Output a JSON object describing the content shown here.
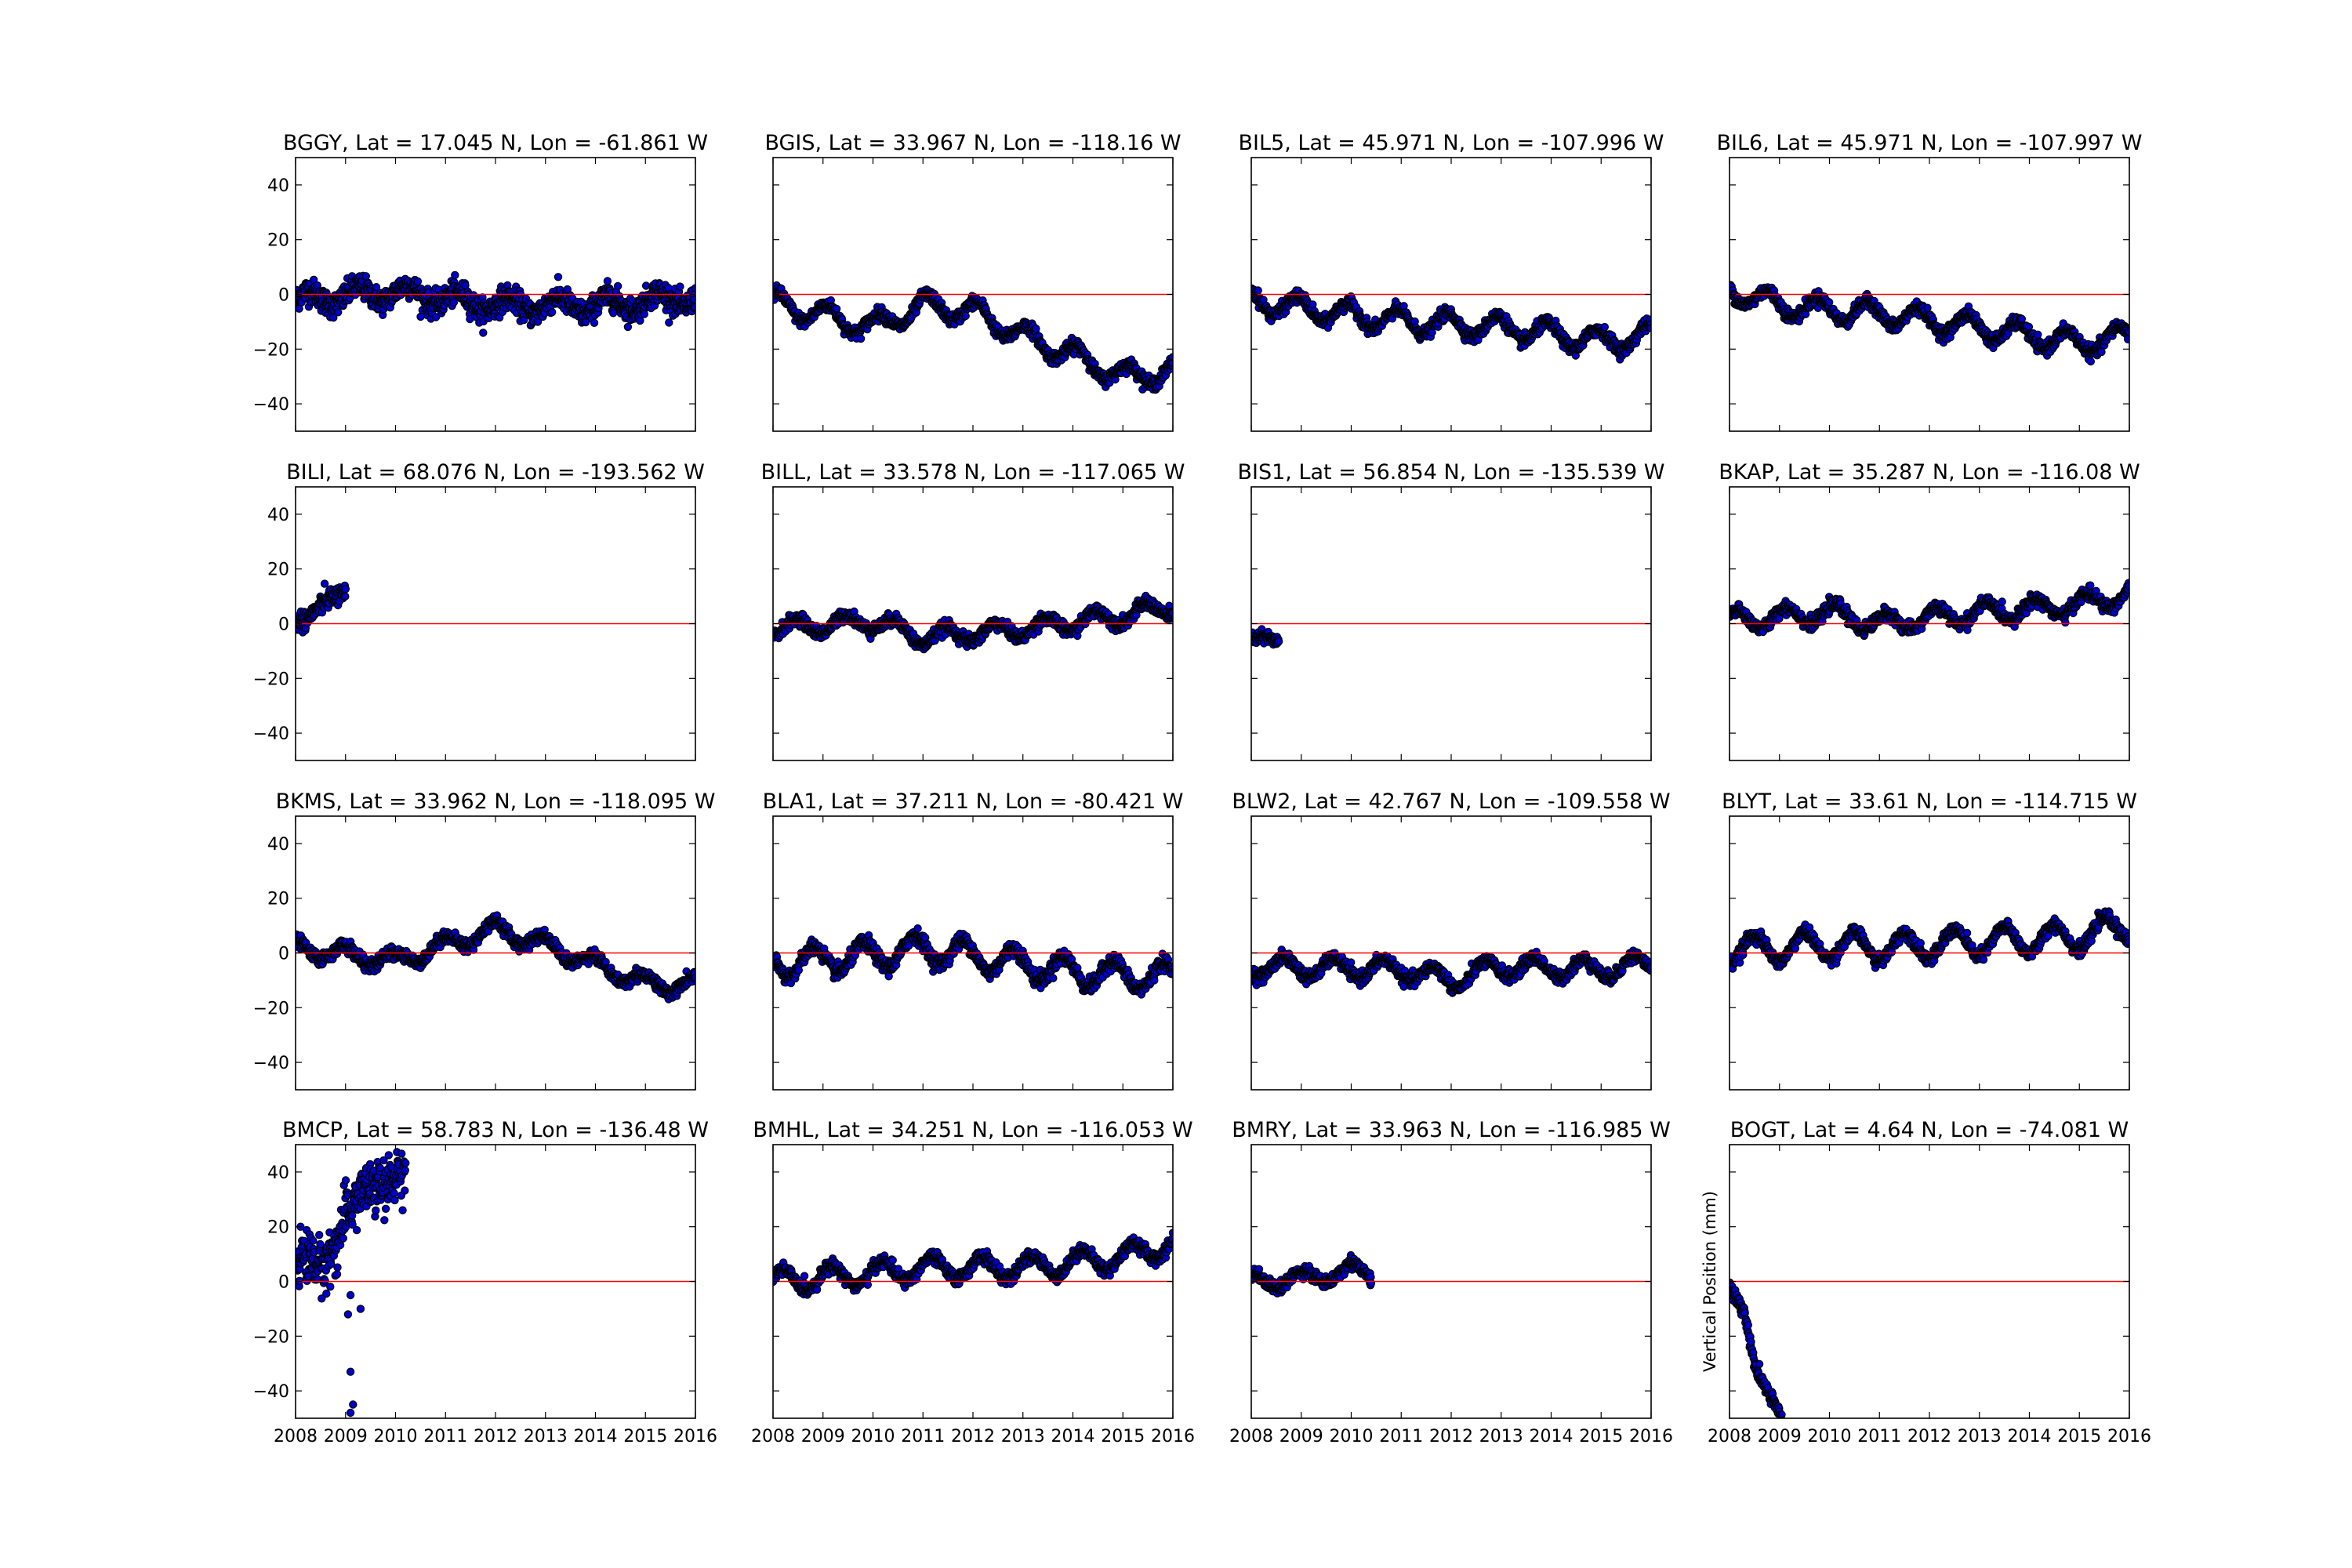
{
  "figure": {
    "ylabel": "Vertical Position (mm)"
  },
  "chart_data": [
    {
      "type": "scatter",
      "title": "BGGY, Lat = 17.045 N, Lon = -61.861 W",
      "xlim": [
        2008,
        2016
      ],
      "ylim": [
        -50,
        50
      ],
      "xticks": [
        "2008",
        "2009",
        "2010",
        "2011",
        "2012",
        "2013",
        "2014",
        "2015",
        "2016"
      ],
      "yticks": [
        "40",
        "20",
        "0",
        "−20",
        "−40"
      ],
      "reference_line": 0,
      "reference_color": "#ff0000",
      "marker_color": "#0000cc",
      "x_start": 2008.0,
      "x_end": 2016.0,
      "trend": [
        [
          2008,
          -2
        ],
        [
          2010,
          1
        ],
        [
          2012,
          -4
        ],
        [
          2014,
          -4
        ],
        [
          2016,
          -1
        ]
      ],
      "seasonal_amp": 3,
      "noise": 5,
      "show_xticks": false,
      "show_yticks": true
    },
    {
      "type": "scatter",
      "title": "BGIS, Lat = 33.967 N, Lon = -118.16 W",
      "xlim": [
        2008,
        2016
      ],
      "ylim": [
        -50,
        50
      ],
      "xticks": [
        "2008",
        "2009",
        "2010",
        "2011",
        "2012",
        "2013",
        "2014",
        "2015",
        "2016"
      ],
      "yticks": [
        "40",
        "20",
        "0",
        "−20",
        "−40"
      ],
      "reference_line": 0,
      "reference_color": "#ff0000",
      "marker_color": "#0000cc",
      "x_start": 2008.0,
      "x_end": 2016.0,
      "trend": [
        [
          2008,
          -3
        ],
        [
          2010,
          -12
        ],
        [
          2011,
          -4
        ],
        [
          2012,
          -6
        ],
        [
          2013,
          -15
        ],
        [
          2014,
          -22
        ],
        [
          2015,
          -30
        ],
        [
          2016,
          -28
        ]
      ],
      "seasonal_amp": 4,
      "noise": 2.5,
      "show_xticks": false,
      "show_yticks": false
    },
    {
      "type": "scatter",
      "title": "BIL5, Lat = 45.971 N, Lon = -107.996 W",
      "xlim": [
        2008,
        2016
      ],
      "ylim": [
        -50,
        50
      ],
      "xticks": [
        "2008",
        "2009",
        "2010",
        "2011",
        "2012",
        "2013",
        "2014",
        "2015",
        "2016"
      ],
      "yticks": [
        "40",
        "20",
        "0",
        "−20",
        "−40"
      ],
      "reference_line": 0,
      "reference_color": "#ff0000",
      "marker_color": "#0000cc",
      "x_start": 2008.0,
      "x_end": 2016.0,
      "trend": [
        [
          2008,
          -2
        ],
        [
          2009,
          -5
        ],
        [
          2011,
          -10
        ],
        [
          2013,
          -12
        ],
        [
          2015,
          -17
        ],
        [
          2016,
          -15
        ]
      ],
      "seasonal_amp": 4,
      "noise": 2.5,
      "show_xticks": false,
      "show_yticks": false
    },
    {
      "type": "scatter",
      "title": "BIL6, Lat = 45.971 N, Lon = -107.997 W",
      "xlim": [
        2008,
        2016
      ],
      "ylim": [
        -50,
        50
      ],
      "xticks": [
        "2008",
        "2009",
        "2010",
        "2011",
        "2012",
        "2013",
        "2014",
        "2015",
        "2016"
      ],
      "yticks": [
        "40",
        "20",
        "0",
        "−20",
        "−40"
      ],
      "reference_line": 0,
      "reference_color": "#ff0000",
      "marker_color": "#0000cc",
      "x_start": 2008.0,
      "x_end": 2016.0,
      "trend": [
        [
          2008,
          2
        ],
        [
          2009,
          -4
        ],
        [
          2011,
          -7
        ],
        [
          2013,
          -12
        ],
        [
          2015,
          -18
        ],
        [
          2016,
          -15
        ]
      ],
      "seasonal_amp": 4,
      "noise": 2.5,
      "show_xticks": false,
      "show_yticks": false
    },
    {
      "type": "scatter",
      "title": "BILI, Lat = 68.076 N, Lon = -193.562 W",
      "xlim": [
        2008,
        2016
      ],
      "ylim": [
        -50,
        50
      ],
      "xticks": [
        "2008",
        "2009",
        "2010",
        "2011",
        "2012",
        "2013",
        "2014",
        "2015",
        "2016"
      ],
      "yticks": [
        "40",
        "20",
        "0",
        "−20",
        "−40"
      ],
      "reference_line": 0,
      "reference_color": "#ff0000",
      "marker_color": "#0000cc",
      "x_start": 2008.0,
      "x_end": 2009.0,
      "trend": [
        [
          2008,
          2
        ],
        [
          2008.5,
          5
        ],
        [
          2009,
          12
        ]
      ],
      "seasonal_amp": 2,
      "noise": 4,
      "show_xticks": false,
      "show_yticks": true
    },
    {
      "type": "scatter",
      "title": "BILL, Lat = 33.578 N, Lon = -117.065 W",
      "xlim": [
        2008,
        2016
      ],
      "ylim": [
        -50,
        50
      ],
      "xticks": [
        "2008",
        "2009",
        "2010",
        "2011",
        "2012",
        "2013",
        "2014",
        "2015",
        "2016"
      ],
      "yticks": [
        "40",
        "20",
        "0",
        "−20",
        "−40"
      ],
      "reference_line": 0,
      "reference_color": "#ff0000",
      "marker_color": "#0000cc",
      "x_start": 2008.0,
      "x_end": 2016.0,
      "trend": [
        [
          2008,
          -2
        ],
        [
          2010,
          1
        ],
        [
          2011,
          -5
        ],
        [
          2013,
          -2
        ],
        [
          2015,
          3
        ],
        [
          2016,
          6
        ]
      ],
      "seasonal_amp": 3,
      "noise": 2.5,
      "show_xticks": false,
      "show_yticks": false
    },
    {
      "type": "scatter",
      "title": "BIS1, Lat = 56.854 N, Lon = -135.539 W",
      "xlim": [
        2008,
        2016
      ],
      "ylim": [
        -50,
        50
      ],
      "xticks": [
        "2008",
        "2009",
        "2010",
        "2011",
        "2012",
        "2013",
        "2014",
        "2015",
        "2016"
      ],
      "yticks": [
        "40",
        "20",
        "0",
        "−20",
        "−40"
      ],
      "reference_line": 0,
      "reference_color": "#ff0000",
      "marker_color": "#0000cc",
      "x_start": 2008.0,
      "x_end": 2008.55,
      "trend": [
        [
          2008,
          -5
        ],
        [
          2008.55,
          -7
        ]
      ],
      "seasonal_amp": 1,
      "noise": 2.5,
      "show_xticks": false,
      "show_yticks": false
    },
    {
      "type": "scatter",
      "title": "BKAP, Lat = 35.287 N, Lon = -116.08 W",
      "xlim": [
        2008,
        2016
      ],
      "ylim": [
        -50,
        50
      ],
      "xticks": [
        "2008",
        "2009",
        "2010",
        "2011",
        "2012",
        "2013",
        "2014",
        "2015",
        "2016"
      ],
      "yticks": [
        "40",
        "20",
        "0",
        "−20",
        "−40"
      ],
      "reference_line": 0,
      "reference_color": "#ff0000",
      "marker_color": "#0000cc",
      "x_start": 2008.0,
      "x_end": 2016.0,
      "trend": [
        [
          2008,
          1
        ],
        [
          2010,
          4
        ],
        [
          2011,
          0
        ],
        [
          2013,
          4
        ],
        [
          2015,
          7
        ],
        [
          2016,
          11
        ]
      ],
      "seasonal_amp": 3.5,
      "noise": 2.5,
      "show_xticks": false,
      "show_yticks": false
    },
    {
      "type": "scatter",
      "title": "BKMS, Lat = 33.962 N, Lon = -118.095 W",
      "xlim": [
        2008,
        2016
      ],
      "ylim": [
        -50,
        50
      ],
      "xticks": [
        "2008",
        "2009",
        "2010",
        "2011",
        "2012",
        "2013",
        "2014",
        "2015",
        "2016"
      ],
      "yticks": [
        "40",
        "20",
        "0",
        "−20",
        "−40"
      ],
      "reference_line": 0,
      "reference_color": "#ff0000",
      "marker_color": "#0000cc",
      "x_start": 2008.0,
      "x_end": 2016.0,
      "trend": [
        [
          2008,
          2
        ],
        [
          2010,
          -3
        ],
        [
          2011,
          3
        ],
        [
          2012,
          9
        ],
        [
          2013,
          3
        ],
        [
          2014,
          -4
        ],
        [
          2015,
          -11
        ],
        [
          2016,
          -12
        ]
      ],
      "seasonal_amp": 3,
      "noise": 2.5,
      "show_xticks": false,
      "show_yticks": true
    },
    {
      "type": "scatter",
      "title": "BLA1, Lat = 37.211 N, Lon = -80.421 W",
      "xlim": [
        2008,
        2016
      ],
      "ylim": [
        -50,
        50
      ],
      "xticks": [
        "2008",
        "2009",
        "2010",
        "2011",
        "2012",
        "2013",
        "2014",
        "2015",
        "2016"
      ],
      "yticks": [
        "40",
        "20",
        "0",
        "−20",
        "−40"
      ],
      "reference_line": 0,
      "reference_color": "#ff0000",
      "marker_color": "#0000cc",
      "x_start": 2008.0,
      "x_end": 2016.0,
      "trend": [
        [
          2008,
          -4
        ],
        [
          2010,
          -1
        ],
        [
          2011,
          2
        ],
        [
          2013,
          -4
        ],
        [
          2014,
          -7
        ],
        [
          2016,
          -9
        ]
      ],
      "seasonal_amp": 5,
      "noise": 3,
      "show_xticks": false,
      "show_yticks": false
    },
    {
      "type": "scatter",
      "title": "BLW2, Lat = 42.767 N, Lon = -109.558 W",
      "xlim": [
        2008,
        2016
      ],
      "ylim": [
        -50,
        50
      ],
      "xticks": [
        "2008",
        "2009",
        "2010",
        "2011",
        "2012",
        "2013",
        "2014",
        "2015",
        "2016"
      ],
      "yticks": [
        "40",
        "20",
        "0",
        "−20",
        "−40"
      ],
      "reference_line": 0,
      "reference_color": "#ff0000",
      "marker_color": "#0000cc",
      "x_start": 2008.0,
      "x_end": 2016.0,
      "trend": [
        [
          2008,
          -5
        ],
        [
          2011,
          -6
        ],
        [
          2012,
          -10
        ],
        [
          2013,
          -5
        ],
        [
          2015,
          -6
        ],
        [
          2016,
          -4
        ]
      ],
      "seasonal_amp": 3.5,
      "noise": 2.5,
      "show_xticks": false,
      "show_yticks": false
    },
    {
      "type": "scatter",
      "title": "BLYT, Lat = 33.61 N, Lon = -114.715 W",
      "xlim": [
        2008,
        2016
      ],
      "ylim": [
        -50,
        50
      ],
      "xticks": [
        "2008",
        "2009",
        "2010",
        "2011",
        "2012",
        "2013",
        "2014",
        "2015",
        "2016"
      ],
      "yticks": [
        "40",
        "20",
        "0",
        "−20",
        "−40"
      ],
      "reference_line": 0,
      "reference_color": "#ff0000",
      "marker_color": "#0000cc",
      "x_start": 2008.0,
      "x_end": 2016.0,
      "trend": [
        [
          2008,
          1
        ],
        [
          2010,
          3
        ],
        [
          2011,
          2
        ],
        [
          2013,
          4
        ],
        [
          2015,
          6
        ],
        [
          2016,
          10
        ]
      ],
      "seasonal_amp": 5,
      "noise": 2.5,
      "show_xticks": false,
      "show_yticks": false
    },
    {
      "type": "scatter",
      "title": "BMCP, Lat = 58.783 N, Lon = -136.48 W",
      "xlim": [
        2008,
        2016
      ],
      "ylim": [
        -50,
        50
      ],
      "xticks": [
        "2008",
        "2009",
        "2010",
        "2011",
        "2012",
        "2013",
        "2014",
        "2015",
        "2016"
      ],
      "yticks": [
        "40",
        "20",
        "0",
        "−20",
        "−40"
      ],
      "reference_line": 0,
      "reference_color": "#ff0000",
      "marker_color": "#0000cc",
      "x_start": 2008.0,
      "x_end": 2010.2,
      "trend": [
        [
          2008,
          10
        ],
        [
          2008.5,
          3
        ],
        [
          2009,
          25
        ],
        [
          2010,
          40
        ]
      ],
      "seasonal_amp": 3,
      "noise": 11,
      "outliers": [
        [
          2009.1,
          -48
        ],
        [
          2009.15,
          -45
        ],
        [
          2009.1,
          -33
        ],
        [
          2009.05,
          -12
        ],
        [
          2009.3,
          -10
        ],
        [
          2009.1,
          -5
        ]
      ],
      "show_xticks": true,
      "show_yticks": true
    },
    {
      "type": "scatter",
      "title": "BMHL, Lat = 34.251 N, Lon = -116.053 W",
      "xlim": [
        2008,
        2016
      ],
      "ylim": [
        -50,
        50
      ],
      "xticks": [
        "2008",
        "2009",
        "2010",
        "2011",
        "2012",
        "2013",
        "2014",
        "2015",
        "2016"
      ],
      "yticks": [
        "40",
        "20",
        "0",
        "−20",
        "−40"
      ],
      "reference_line": 0,
      "reference_color": "#ff0000",
      "marker_color": "#0000cc",
      "x_start": 2008.0,
      "x_end": 2016.0,
      "trend": [
        [
          2008,
          0
        ],
        [
          2010,
          3
        ],
        [
          2011,
          5
        ],
        [
          2013,
          5
        ],
        [
          2015,
          9
        ],
        [
          2016,
          14
        ]
      ],
      "seasonal_amp": 4,
      "noise": 2.5,
      "show_xticks": true,
      "show_yticks": false
    },
    {
      "type": "scatter",
      "title": "BMRY, Lat = 33.963 N, Lon = -116.985 W",
      "xlim": [
        2008,
        2016
      ],
      "ylim": [
        -50,
        50
      ],
      "xticks": [
        "2008",
        "2009",
        "2010",
        "2011",
        "2012",
        "2013",
        "2014",
        "2015",
        "2016"
      ],
      "yticks": [
        "40",
        "20",
        "0",
        "−20",
        "−40"
      ],
      "reference_line": 0,
      "reference_color": "#ff0000",
      "marker_color": "#0000cc",
      "x_start": 2008.0,
      "x_end": 2010.4,
      "trend": [
        [
          2008,
          0
        ],
        [
          2009,
          1
        ],
        [
          2010,
          4
        ],
        [
          2010.4,
          3
        ]
      ],
      "seasonal_amp": 3,
      "noise": 2.5,
      "show_xticks": true,
      "show_yticks": false
    },
    {
      "type": "scatter",
      "title": "BOGT, Lat = 4.64 N, Lon = -74.081 W",
      "xlim": [
        2008,
        2016
      ],
      "ylim": [
        -50,
        50
      ],
      "xticks": [
        "2008",
        "2009",
        "2010",
        "2011",
        "2012",
        "2013",
        "2014",
        "2015",
        "2016"
      ],
      "yticks": [
        "40",
        "20",
        "0",
        "−20",
        "−40"
      ],
      "reference_line": 0,
      "reference_color": "#ff0000",
      "marker_color": "#0000cc",
      "x_start": 2008.0,
      "x_end": 2009.05,
      "trend": [
        [
          2008,
          -3
        ],
        [
          2008.3,
          -10
        ],
        [
          2008.5,
          -30
        ],
        [
          2008.8,
          -43
        ],
        [
          2009.05,
          -50
        ]
      ],
      "seasonal_amp": 1,
      "noise": 3,
      "show_xticks": true,
      "show_yticks": false,
      "show_ylabel": true
    }
  ]
}
